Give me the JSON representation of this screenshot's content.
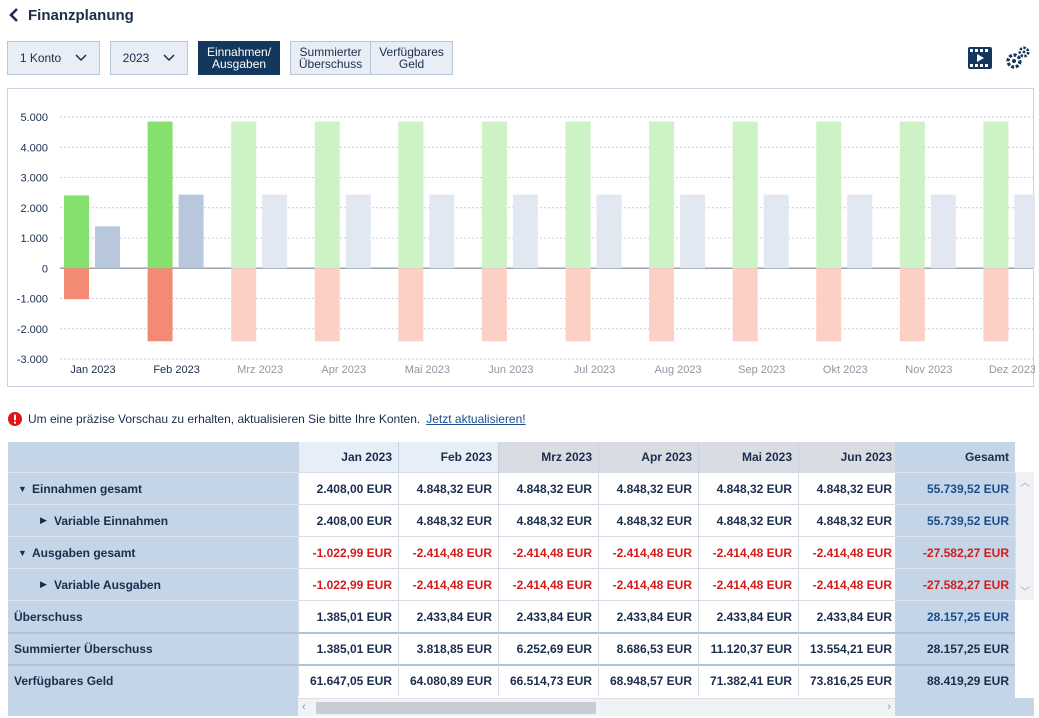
{
  "header": {
    "title": "Finanzplanung",
    "back_icon": "chevron-left-icon"
  },
  "toolbar": {
    "account_select": "1 Konto",
    "year_select": "2023",
    "views": [
      {
        "label": "Einnahmen/\nAusgaben",
        "active": true
      },
      {
        "label": "Summierter\nÜberschuss",
        "active": false
      },
      {
        "label": "Verfügbares\nGeld",
        "active": false
      }
    ],
    "video_icon": "video-icon",
    "settings_icon": "gears-icon"
  },
  "colors": {
    "income": "#86e06e",
    "income_forecast": "#cdf2c6",
    "expense": "#f38b74",
    "expense_forecast": "#fdd0c6",
    "surplus": "#b8c7db",
    "surplus_forecast": "#e1e8f2",
    "negative_text": "#d41b1b",
    "header_dark": "#14375e"
  },
  "chart_data": {
    "type": "bar",
    "categories": [
      "Jan 2023",
      "Feb 2023",
      "Mrz 2023",
      "Apr 2023",
      "Mai 2023",
      "Jun 2023",
      "Jul 2023",
      "Aug 2023",
      "Sep 2023",
      "Okt 2023",
      "Nov 2023",
      "Dez 2023"
    ],
    "actual_months": 2,
    "series": [
      {
        "values": [
          2408.0,
          4848.32,
          4848.32,
          4848.32,
          4848.32,
          4848.32,
          4848.32,
          4848.32,
          4848.32,
          4848.32,
          4848.32,
          4848.32
        ]
      },
      {
        "values": [
          -1022.99,
          -2414.48,
          -2414.48,
          -2414.48,
          -2414.48,
          -2414.48,
          -2414.48,
          -2414.48,
          -2414.48,
          -2414.48,
          -2414.48,
          -2414.48
        ]
      },
      {
        "values": [
          1385.01,
          2433.84,
          2433.84,
          2433.84,
          2433.84,
          2433.84,
          2433.84,
          2433.84,
          2433.84,
          2433.84,
          2433.84,
          2433.84
        ]
      }
    ],
    "yticks": [
      "5.000",
      "4.000",
      "3.000",
      "2.000",
      "1.000",
      "0",
      "-1.000",
      "-2.000",
      "-3.000"
    ],
    "ylim": [
      -3000,
      5000
    ],
    "grid": true
  },
  "notice": {
    "text": "Um eine präzise Vorschau zu erhalten, aktualisieren Sie bitte Ihre Konten.",
    "link": "Jetzt aktualisieren!"
  },
  "table": {
    "columns": [
      "Jan 2023",
      "Feb 2023",
      "Mrz 2023",
      "Apr 2023",
      "Mai 2023",
      "Jun 2023"
    ],
    "total_header": "Gesamt",
    "rows": [
      {
        "label": "Einnahmen gesamt",
        "toggle": "▼",
        "negative": false,
        "values": [
          "2.408,00 EUR",
          "4.848,32 EUR",
          "4.848,32 EUR",
          "4.848,32 EUR",
          "4.848,32 EUR",
          "4.848,32 EUR"
        ],
        "total": "55.739,52 EUR"
      },
      {
        "label": "Variable Einnahmen",
        "toggle": "▶",
        "negative": false,
        "values": [
          "2.408,00 EUR",
          "4.848,32 EUR",
          "4.848,32 EUR",
          "4.848,32 EUR",
          "4.848,32 EUR",
          "4.848,32 EUR"
        ],
        "total": "55.739,52 EUR"
      },
      {
        "label": "Ausgaben gesamt",
        "toggle": "▼",
        "negative": true,
        "values": [
          "-1.022,99 EUR",
          "-2.414,48 EUR",
          "-2.414,48 EUR",
          "-2.414,48 EUR",
          "-2.414,48 EUR",
          "-2.414,48 EUR"
        ],
        "total": "-27.582,27 EUR"
      },
      {
        "label": "Variable Ausgaben",
        "toggle": "▶",
        "negative": true,
        "values": [
          "-1.022,99 EUR",
          "-2.414,48 EUR",
          "-2.414,48 EUR",
          "-2.414,48 EUR",
          "-2.414,48 EUR",
          "-2.414,48 EUR"
        ],
        "total": "-27.582,27 EUR"
      },
      {
        "label": "Überschuss",
        "toggle": "",
        "negative": false,
        "values": [
          "1.385,01 EUR",
          "2.433,84 EUR",
          "2.433,84 EUR",
          "2.433,84 EUR",
          "2.433,84 EUR",
          "2.433,84 EUR"
        ],
        "total": "28.157,25 EUR"
      },
      {
        "label": "Summierter Überschuss",
        "toggle": "",
        "negative": false,
        "values": [
          "1.385,01 EUR",
          "3.818,85 EUR",
          "6.252,69 EUR",
          "8.686,53 EUR",
          "11.120,37 EUR",
          "13.554,21 EUR"
        ],
        "total": "28.157,25 EUR"
      },
      {
        "label": "Verfügbares Geld",
        "toggle": "",
        "negative": false,
        "values": [
          "61.647,05 EUR",
          "64.080,89 EUR",
          "66.514,73 EUR",
          "68.948,57 EUR",
          "71.382,41 EUR",
          "73.816,25 EUR"
        ],
        "total": "88.419,29 EUR"
      }
    ]
  }
}
